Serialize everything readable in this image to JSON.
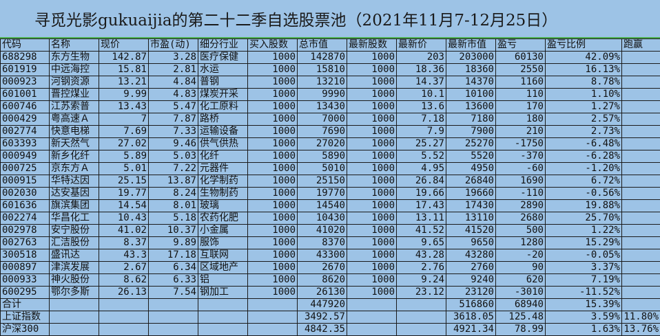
{
  "title": "寻觅光影gukuaijia的第二十二季自选股票池（2021年11月7-12月25日）",
  "columns": [
    "代码",
    "名称",
    "现价",
    "市盈(动)",
    "细分行业",
    "买入股数",
    "总市值",
    "最新股数",
    "最新价",
    "最新市值",
    "盈亏",
    "盈亏比例",
    "跑赢"
  ],
  "rows": [
    [
      "688298",
      "东方生物",
      "142.87",
      "3.28",
      "医疗保健",
      "1000",
      "142870",
      "1000",
      "203",
      "203000",
      "60130",
      "42.09%",
      ""
    ],
    [
      "601919",
      "中远海控",
      "15.81",
      "2.81",
      "水运",
      "1000",
      "15810",
      "1000",
      "18.36",
      "18360",
      "2550",
      "16.13%",
      ""
    ],
    [
      "000923",
      "河钢资源",
      "13.21",
      "4.84",
      "普钢",
      "1000",
      "13210",
      "1000",
      "14.37",
      "14370",
      "1160",
      "8.78%",
      ""
    ],
    [
      "601001",
      "晋控煤业",
      "9.99",
      "4.83",
      "煤炭开采",
      "1000",
      "9990",
      "1000",
      "10.1",
      "10100",
      "110",
      "1.10%",
      ""
    ],
    [
      "600746",
      "江苏索普",
      "13.43",
      "5.47",
      "化工原料",
      "1000",
      "13430",
      "1000",
      "13.6",
      "13600",
      "170",
      "1.27%",
      ""
    ],
    [
      "000429",
      "粤高速Ａ",
      "7",
      "7.87",
      "路桥",
      "1000",
      "7000",
      "1000",
      "7.18",
      "7180",
      "180",
      "2.57%",
      ""
    ],
    [
      "002774",
      "快意电梯",
      "7.69",
      "7.33",
      "运输设备",
      "1000",
      "7690",
      "1000",
      "7.9",
      "7900",
      "210",
      "2.73%",
      ""
    ],
    [
      "603393",
      "新天然气",
      "27.02",
      "9.46",
      "供气供热",
      "1000",
      "27020",
      "1000",
      "25.27",
      "25270",
      "-1750",
      "-6.48%",
      ""
    ],
    [
      "000949",
      "新乡化纤",
      "5.89",
      "5.03",
      "化纤",
      "1000",
      "5890",
      "1000",
      "5.52",
      "5520",
      "-370",
      "-6.28%",
      ""
    ],
    [
      "000725",
      "京东方Ａ",
      "5.01",
      "7.22",
      "元器件",
      "1000",
      "5010",
      "1000",
      "4.95",
      "4950",
      "-60",
      "-1.20%",
      ""
    ],
    [
      "000915",
      "华特达因",
      "25.15",
      "13.87",
      "化学制药",
      "1000",
      "25150",
      "1000",
      "26.84",
      "26840",
      "1690",
      "6.72%",
      ""
    ],
    [
      "002030",
      "达安基因",
      "19.77",
      "8.24",
      "生物制药",
      "1000",
      "19770",
      "1000",
      "19.66",
      "19660",
      "-110",
      "-0.56%",
      ""
    ],
    [
      "601636",
      "旗滨集团",
      "14.54",
      "8.01",
      "玻璃",
      "1000",
      "14540",
      "1000",
      "17.43",
      "17430",
      "2890",
      "19.88%",
      ""
    ],
    [
      "002274",
      "华昌化工",
      "10.43",
      "5.18",
      "农药化肥",
      "1000",
      "10430",
      "1000",
      "13.11",
      "13110",
      "2680",
      "25.70%",
      ""
    ],
    [
      "002978",
      "安宁股份",
      "41.02",
      "10.37",
      "小金属",
      "1000",
      "41020",
      "1000",
      "41.52",
      "41520",
      "500",
      "1.22%",
      ""
    ],
    [
      "002763",
      "汇洁股份",
      "8.37",
      "9.89",
      "服饰",
      "1000",
      "8370",
      "1000",
      "9.65",
      "9650",
      "1280",
      "15.29%",
      ""
    ],
    [
      "300518",
      "盛讯达",
      "43.3",
      "17.18",
      "互联网",
      "1000",
      "43300",
      "1000",
      "43.28",
      "43280",
      "-20",
      "-0.05%",
      ""
    ],
    [
      "000897",
      "津滨发展",
      "2.67",
      "6.34",
      "区域地产",
      "1000",
      "2670",
      "1000",
      "2.76",
      "2760",
      "90",
      "3.37%",
      ""
    ],
    [
      "000933",
      "神火股份",
      "8.62",
      "6.33",
      "铝",
      "1000",
      "8620",
      "1000",
      "9.24",
      "9240",
      "620",
      "7.19%",
      ""
    ],
    [
      "600295",
      "鄂尔多斯",
      "26.13",
      "7.54",
      "钢加工",
      "1000",
      "26130",
      "1000",
      "23.12",
      "23120",
      "-3010",
      "-11.52%",
      ""
    ],
    [
      "合计",
      "",
      "",
      "",
      "",
      "",
      "447920",
      "",
      "",
      "516860",
      "68940",
      "15.39%",
      ""
    ],
    [
      "上证指数",
      "",
      "",
      "",
      "",
      "",
      "3492.57",
      "",
      "",
      "3618.05",
      "125.48",
      "3.59%",
      "11.80%"
    ],
    [
      "沪深300",
      "",
      "",
      "",
      "",
      "",
      "4842.35",
      "",
      "",
      "4921.34",
      "78.99",
      "1.63%",
      "13.76%"
    ]
  ]
}
